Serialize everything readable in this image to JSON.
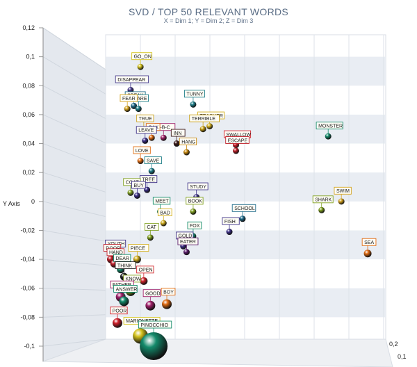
{
  "chart_data": {
    "type": "scatter",
    "title": "SVD / TOP 50 RELEVANT WORDS",
    "subtitle": "X = Dim 1; Y = Dim 2; Z = Dim 3",
    "ylabel": "Y Axis",
    "ylim": [
      -0.1,
      0.12
    ],
    "y_ticks": [
      "0,12",
      "0,1",
      "0,08",
      "0,06",
      "0,04",
      "0,02",
      "0",
      "-0,02",
      "-0,04",
      "-0,06",
      "-0,08",
      "-0,1"
    ],
    "z_ticks": [
      "0,2",
      "0,1"
    ],
    "grid": true,
    "points": [
      {
        "label": "GO_ON",
        "x": -0.045,
        "y": 0.093,
        "z": 0.02,
        "color": "#d4c21c"
      },
      {
        "label": "DISAPPEAR",
        "x": -0.06,
        "y": 0.077,
        "z": 0.02,
        "color": "#463a8c"
      },
      {
        "label": "SPEAK",
        "x": -0.055,
        "y": 0.066,
        "z": 0.02,
        "color": "#1f6b8a"
      },
      {
        "label": "FEAR",
        "x": -0.065,
        "y": 0.064,
        "z": 0.02,
        "color": "#d4a21c"
      },
      {
        "label": "CARE",
        "x": -0.048,
        "y": 0.064,
        "z": 0.02,
        "color": "#1f7f8a"
      },
      {
        "label": "TRUE",
        "x": -0.04,
        "y": 0.05,
        "z": 0.02,
        "color": "#c9a01c"
      },
      {
        "label": "OAK",
        "x": -0.028,
        "y": 0.044,
        "z": 0.02,
        "color": "#e06a10"
      },
      {
        "label": "A-B-C",
        "x": -0.01,
        "y": 0.044,
        "z": 0.02,
        "color": "#a0206a"
      },
      {
        "label": "LEAVE",
        "x": -0.038,
        "y": 0.042,
        "z": 0.02,
        "color": "#3a2e86"
      },
      {
        "label": "INN",
        "x": 0.01,
        "y": 0.04,
        "z": 0.02,
        "color": "#3a1a1a"
      },
      {
        "label": "HANG",
        "x": 0.025,
        "y": 0.034,
        "z": 0.02,
        "color": "#c98a10"
      },
      {
        "label": "TUNNY",
        "x": 0.035,
        "y": 0.067,
        "z": 0.02,
        "color": "#1f7f8a"
      },
      {
        "label": "TERRIBLE",
        "x": 0.05,
        "y": 0.05,
        "z": 0.02,
        "color": "#c9a010"
      },
      {
        "label": "TEACHER",
        "x": 0.06,
        "y": 0.052,
        "z": 0.02,
        "color": "#d4b020"
      },
      {
        "label": "SWALLOW",
        "x": 0.1,
        "y": 0.039,
        "z": 0.02,
        "color": "#d0202a"
      },
      {
        "label": "ESCAPE",
        "x": 0.1,
        "y": 0.035,
        "z": 0.02,
        "color": "#c0202a"
      },
      {
        "label": "MONSTER",
        "x": 0.24,
        "y": 0.045,
        "z": 0.02,
        "color": "#138a6a"
      },
      {
        "label": "LOVE",
        "x": -0.045,
        "y": 0.028,
        "z": 0.02,
        "color": "#e06a10"
      },
      {
        "label": "SAVE",
        "x": -0.028,
        "y": 0.021,
        "z": 0.02,
        "color": "#1f7f8a"
      },
      {
        "label": "TREE",
        "x": -0.035,
        "y": 0.008,
        "z": 0.02,
        "color": "#3a2e86"
      },
      {
        "label": "COAT",
        "x": -0.06,
        "y": 0.006,
        "z": 0.02,
        "color": "#80a020"
      },
      {
        "label": "BUY",
        "x": -0.05,
        "y": 0.004,
        "z": 0.02,
        "color": "#3a2e86"
      },
      {
        "label": "STUDY",
        "x": 0.04,
        "y": 0.003,
        "z": 0.02,
        "color": "#3a2e86"
      },
      {
        "label": "BOOK",
        "x": 0.035,
        "y": -0.007,
        "z": 0.02,
        "color": "#80a020"
      },
      {
        "label": "MEET",
        "x": -0.015,
        "y": -0.007,
        "z": 0.02,
        "color": "#138a6a"
      },
      {
        "label": "BAD",
        "x": -0.01,
        "y": -0.015,
        "z": 0.02,
        "color": "#d4b020"
      },
      {
        "label": "SCHOOL",
        "x": 0.11,
        "y": -0.012,
        "z": 0.02,
        "color": "#1f6b8a"
      },
      {
        "label": "FISH",
        "x": 0.09,
        "y": -0.021,
        "z": 0.02,
        "color": "#3a2e86"
      },
      {
        "label": "SWIM",
        "x": 0.26,
        "y": 0.0,
        "z": 0.02,
        "color": "#d4a21c"
      },
      {
        "label": "SHARK",
        "x": 0.23,
        "y": -0.006,
        "z": 0.02,
        "color": "#80a020"
      },
      {
        "label": "CAT",
        "x": -0.03,
        "y": -0.025,
        "z": 0.02,
        "color": "#80a020"
      },
      {
        "label": "FOX",
        "x": 0.035,
        "y": -0.024,
        "z": 0.02,
        "color": "#138a6a"
      },
      {
        "label": "GOLD",
        "x": 0.02,
        "y": -0.031,
        "z": 0.02,
        "color": "#3a2e86"
      },
      {
        "label": "EATER",
        "x": 0.025,
        "y": -0.035,
        "z": 0.02,
        "color": "#5a1a6a"
      },
      {
        "label": "SEA",
        "x": 0.3,
        "y": -0.036,
        "z": 0.02,
        "color": "#e06a10"
      },
      {
        "label": "DOOR",
        "x": -0.09,
        "y": -0.04,
        "z": 0.02,
        "color": "#c0202a"
      },
      {
        "label": "YOUTH",
        "x": -0.085,
        "y": -0.037,
        "z": 0.02,
        "color": "#3a2e86"
      },
      {
        "label": "PIECE",
        "x": -0.05,
        "y": -0.04,
        "z": 0.02,
        "color": "#d4b020"
      },
      {
        "label": "HAND",
        "x": -0.085,
        "y": -0.043,
        "z": 0.02,
        "color": "#c0202a"
      },
      {
        "label": "DEAR",
        "x": -0.075,
        "y": -0.047,
        "z": 0.02,
        "color": "#138a6a"
      },
      {
        "label": "THINK",
        "x": -0.07,
        "y": -0.052,
        "z": 0.02,
        "color": "#1f1f1f"
      },
      {
        "label": "OPEN",
        "x": -0.04,
        "y": -0.055,
        "z": 0.02,
        "color": "#d0202a"
      },
      {
        "label": "KNOW",
        "x": -0.06,
        "y": -0.062,
        "z": 0.02,
        "color": "#80a020"
      },
      {
        "label": "FATHER",
        "x": -0.075,
        "y": -0.066,
        "z": 0.02,
        "color": "#a0206a"
      },
      {
        "label": "ANSWER",
        "x": -0.07,
        "y": -0.069,
        "z": 0.02,
        "color": "#138a6a"
      },
      {
        "label": "GOOD",
        "x": -0.03,
        "y": -0.072,
        "z": 0.02,
        "color": "#a0206a"
      },
      {
        "label": "BOY",
        "x": -0.005,
        "y": -0.071,
        "z": 0.02,
        "color": "#e06a10"
      },
      {
        "label": "POOR",
        "x": -0.08,
        "y": -0.084,
        "z": 0.02,
        "color": "#d0202a"
      },
      {
        "label": "MARIONETTE",
        "x": -0.045,
        "y": -0.093,
        "z": 0.02,
        "color": "#d4c21c"
      },
      {
        "label": "PINOCCHIO",
        "x": -0.025,
        "y": -0.1,
        "z": 0.02,
        "color": "#138a6a"
      }
    ]
  }
}
